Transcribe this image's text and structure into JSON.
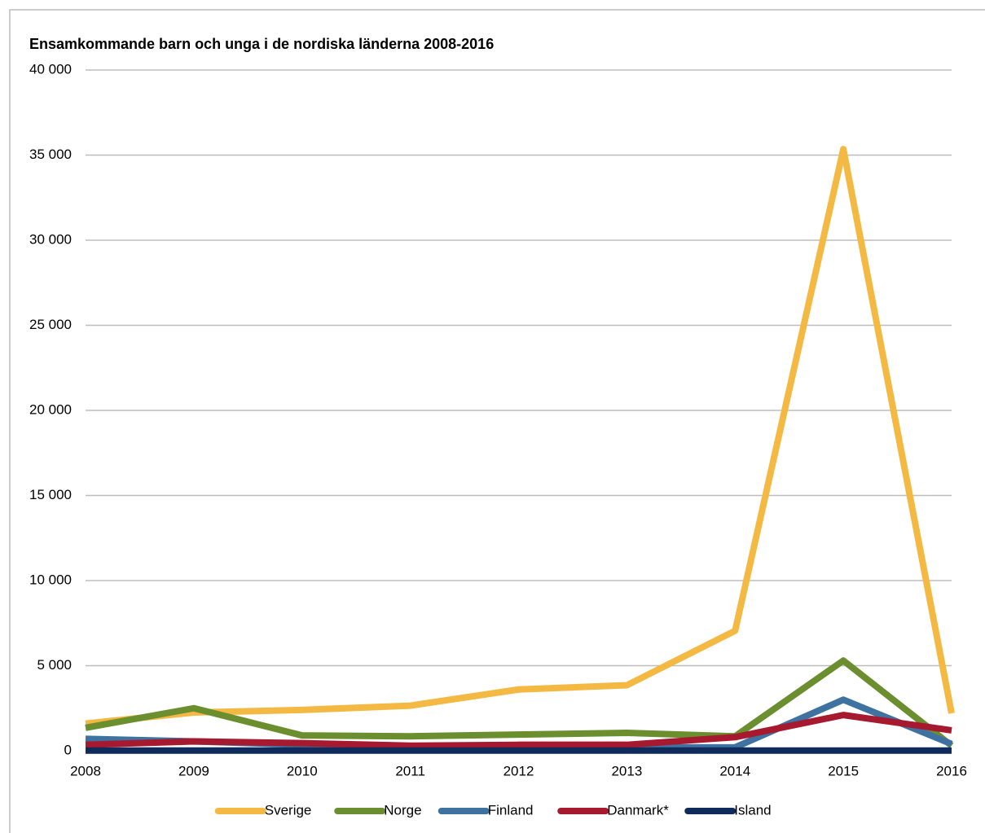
{
  "chart_data": {
    "type": "line",
    "title": "Ensamkommande barn och unga i de nordiska länderna 2008-2016",
    "categories": [
      "2008",
      "2009",
      "2010",
      "2011",
      "2012",
      "2013",
      "2014",
      "2015",
      "2016"
    ],
    "series": [
      {
        "name": "Sverige",
        "color": "#f4b942",
        "values": [
          1600,
          2250,
          2400,
          2650,
          3600,
          3850,
          7050,
          35350,
          2200
        ]
      },
      {
        "name": "Norge",
        "color": "#6b8e2e",
        "values": [
          1350,
          2500,
          900,
          850,
          950,
          1050,
          850,
          5300,
          300
        ]
      },
      {
        "name": "Finland",
        "color": "#3e72a0",
        "values": [
          700,
          550,
          350,
          150,
          150,
          200,
          200,
          3000,
          400
        ]
      },
      {
        "name": "Danmark*",
        "color": "#a6192e",
        "values": [
          350,
          550,
          450,
          300,
          350,
          350,
          800,
          2100,
          1200
        ]
      },
      {
        "name": "Island",
        "color": "#0e2b5c",
        "values": [
          10,
          10,
          10,
          10,
          10,
          10,
          10,
          10,
          10
        ]
      }
    ],
    "ylim": [
      0,
      40000
    ],
    "yticks": [
      0,
      {
        "value": 5000,
        "label": "5 000"
      },
      {
        "value": 10000,
        "label": "10 000"
      },
      {
        "value": 15000,
        "label": "15 000"
      },
      {
        "value": 20000,
        "label": "20 000"
      },
      {
        "value": 25000,
        "label": "25 000"
      },
      {
        "value": 30000,
        "label": "30 000"
      },
      {
        "value": 35000,
        "label": "35 000"
      },
      {
        "value": 40000,
        "label": "40 000"
      }
    ],
    "grid": true
  }
}
